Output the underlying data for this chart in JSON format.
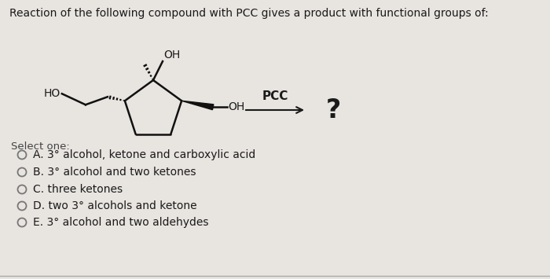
{
  "background_color": "#e8e4e0",
  "title_text": "Reaction of the following compound with PCC gives a product with functional groups of:",
  "title_fontsize": 10.0,
  "select_one_text": "Select one:",
  "options": [
    "A. 3° alcohol, ketone and carboxylic acid",
    "B. 3° alcohol and two ketones",
    "C. three ketones",
    "D. two 3° alcohols and ketone",
    "E. 3° alcohol and two aldehydes"
  ],
  "pcc_label": "PCC",
  "question_mark": "?",
  "text_color": "#1a1a1a",
  "circle_color": "#888888",
  "arrow_color": "#1a1a1a",
  "ring_color": "#111111"
}
